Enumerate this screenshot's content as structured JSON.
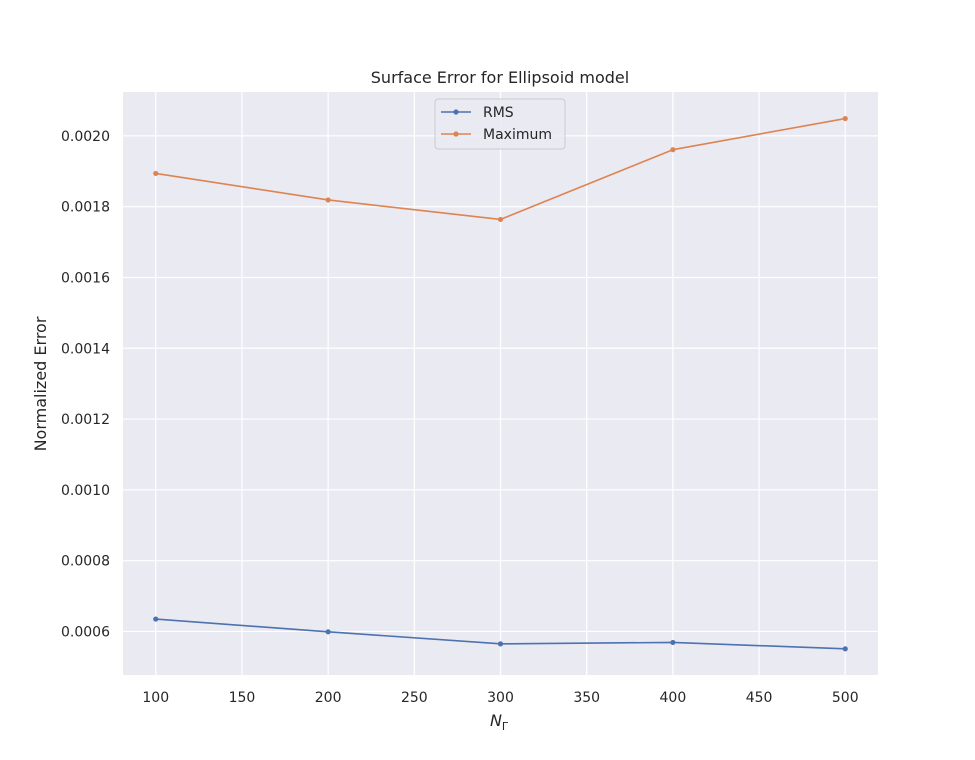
{
  "chart_data": {
    "type": "line",
    "title": "Surface Error for Ellipsoid model",
    "xlabel_main": "N",
    "xlabel_sub": "Γ",
    "ylabel": "Normalized Error",
    "x": [
      100,
      200,
      300,
      400,
      500
    ],
    "xticks": [
      100,
      150,
      200,
      250,
      300,
      350,
      400,
      450,
      500
    ],
    "xtick_labels": [
      "100",
      "150",
      "200",
      "250",
      "300",
      "350",
      "400",
      "450",
      "500"
    ],
    "yticks": [
      0.0006,
      0.0008,
      0.001,
      0.0012,
      0.0014,
      0.0016,
      0.0018,
      0.002
    ],
    "ytick_labels": [
      "0.0006",
      "0.0008",
      "0.0010",
      "0.0012",
      "0.0014",
      "0.0016",
      "0.0018",
      "0.0020"
    ],
    "xlim": [
      81,
      519
    ],
    "ylim": [
      0.000477,
      0.002124
    ],
    "grid": true,
    "legend_placement": "upper center",
    "series": [
      {
        "name": "RMS",
        "color": "#4c72b0",
        "values": [
          0.000635,
          0.000599,
          0.000565,
          0.000569,
          0.000551
        ]
      },
      {
        "name": "Maximum",
        "color": "#dd8452",
        "values": [
          0.001894,
          0.001819,
          0.001764,
          0.001961,
          0.002049
        ]
      }
    ]
  }
}
